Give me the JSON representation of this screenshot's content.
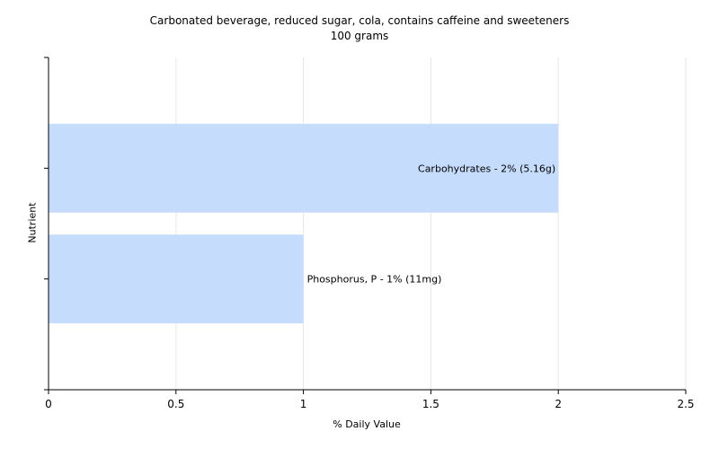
{
  "chart_data": {
    "type": "bar",
    "orientation": "horizontal",
    "title": "Carbonated beverage, reduced sugar, cola, contains caffeine and sweeteners",
    "subtitle": "100 grams",
    "xlabel": "% Daily Value",
    "ylabel": "Nutrient",
    "xlim": [
      0,
      2.5
    ],
    "xticks": [
      "0",
      "0.5",
      "1",
      "1.5",
      "2",
      "2.5"
    ],
    "xtick_values": [
      0,
      0.5,
      1,
      1.5,
      2,
      2.5
    ],
    "grid": true,
    "bar_color": "#c6dcfc",
    "bars": [
      {
        "category": "Carbohydrates",
        "value": 2,
        "label": "Carbohydrates - 2% (5.16g)"
      },
      {
        "category": "Phosphorus, P",
        "value": 1,
        "label": "Phosphorus, P - 1% (11mg)"
      }
    ]
  }
}
